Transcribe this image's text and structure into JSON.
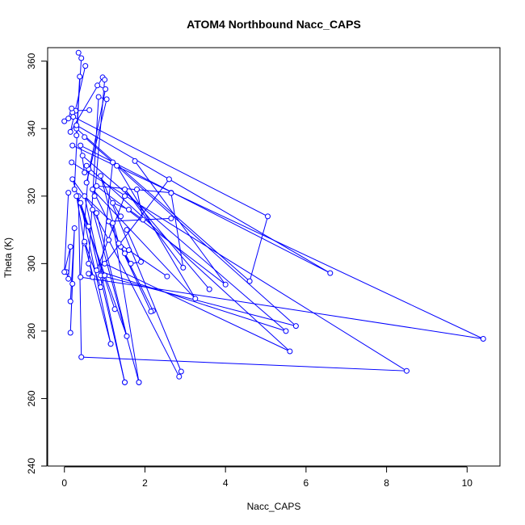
{
  "chart_data": {
    "type": "line",
    "title": "ATOM4 Northbound Nacc_CAPS",
    "xlabel": "Nacc_CAPS",
    "ylabel": "Theta (K)",
    "xlim": [
      0,
      10.4
    ],
    "ylim": [
      240,
      364
    ],
    "xticks": [
      0,
      2,
      4,
      6,
      8,
      10
    ],
    "yticks": [
      240,
      260,
      280,
      300,
      320,
      340,
      360
    ],
    "grid": false,
    "color": "#0000ff",
    "marker": "open-circle",
    "segments": [
      {
        "points": [
          [
            0.35,
            362.5
          ],
          [
            0.42,
            360.9
          ],
          [
            0.3,
            338.0
          ],
          [
            0.38,
            355.4
          ],
          [
            0.25,
            322.0
          ]
        ]
      },
      {
        "points": [
          [
            0.52,
            358.6
          ],
          [
            0.15,
            339.0
          ],
          [
            0.95,
            355.2
          ],
          [
            1.0,
            354.5
          ],
          [
            0.75,
            320.0
          ]
        ]
      },
      {
        "points": [
          [
            0.82,
            352.8
          ],
          [
            1.02,
            351.7
          ],
          [
            0.55,
            324.0
          ],
          [
            1.05,
            348.7
          ],
          [
            0.85,
            349.4
          ],
          [
            0.6,
            300.0
          ]
        ]
      },
      {
        "points": [
          [
            0.62,
            345.5
          ],
          [
            0.28,
            345.3
          ],
          [
            0.2,
            344.8
          ],
          [
            0.18,
            346.0
          ],
          [
            0.1,
            343.0
          ],
          [
            0.0,
            342.2
          ]
        ]
      },
      {
        "points": [
          [
            0.22,
            343.5
          ],
          [
            5.05,
            314.0
          ],
          [
            4.6,
            294.8
          ],
          [
            0.3,
            340.0
          ]
        ]
      },
      {
        "points": [
          [
            0.3,
            341.0
          ],
          [
            6.6,
            297.2
          ],
          [
            0.4,
            335.0
          ],
          [
            0.5,
            327.0
          ]
        ]
      },
      {
        "points": [
          [
            0.2,
            335.0
          ],
          [
            10.4,
            277.7
          ],
          [
            0.4,
            296.0
          ],
          [
            0.6,
            328.0
          ]
        ]
      },
      {
        "points": [
          [
            0.18,
            330.0
          ],
          [
            8.5,
            268.2
          ],
          [
            0.42,
            272.3
          ],
          [
            0.35,
            320.0
          ]
        ]
      },
      {
        "points": [
          [
            0.5,
            337.5
          ],
          [
            5.75,
            281.5
          ],
          [
            0.9,
            296.5
          ],
          [
            1.2,
            330.0
          ]
        ]
      },
      {
        "points": [
          [
            0.45,
            332.0
          ],
          [
            5.5,
            280.0
          ],
          [
            0.8,
            298.0
          ],
          [
            1.5,
            320.0
          ]
        ]
      },
      {
        "points": [
          [
            0.55,
            329.0
          ],
          [
            5.6,
            274.0
          ],
          [
            1.0,
            300.0
          ],
          [
            2.6,
            325.0
          ]
        ]
      },
      {
        "points": [
          [
            1.75,
            330.4
          ],
          [
            4.0,
            293.8
          ],
          [
            0.8,
            323.0
          ],
          [
            2.65,
            321.0
          ]
        ]
      },
      {
        "points": [
          [
            2.65,
            320.9
          ],
          [
            2.95,
            298.8
          ],
          [
            1.5,
            322.0
          ],
          [
            3.6,
            292.4
          ]
        ]
      },
      {
        "points": [
          [
            1.3,
            329.0
          ],
          [
            3.25,
            289.6
          ],
          [
            0.7,
            322.0
          ],
          [
            2.2,
            286.0
          ]
        ]
      },
      {
        "points": [
          [
            2.65,
            313.4
          ],
          [
            1.1,
            312.5
          ],
          [
            2.15,
            285.8
          ],
          [
            1.4,
            305.0
          ]
        ]
      },
      {
        "points": [
          [
            2.55,
            296.2
          ],
          [
            1.35,
            306.0
          ],
          [
            0.9,
            326.0
          ],
          [
            2.9,
            268.0
          ]
        ]
      },
      {
        "points": [
          [
            2.85,
            266.5
          ],
          [
            1.1,
            307.0
          ],
          [
            0.7,
            316.0
          ],
          [
            1.85,
            264.8
          ]
        ]
      },
      {
        "points": [
          [
            1.85,
            264.8
          ],
          [
            1.2,
            312.0
          ],
          [
            0.5,
            320.0
          ],
          [
            1.5,
            264.8
          ]
        ]
      },
      {
        "points": [
          [
            1.5,
            264.8
          ],
          [
            0.6,
            311.0
          ],
          [
            0.4,
            318.0
          ],
          [
            1.15,
            276.2
          ]
        ]
      },
      {
        "points": [
          [
            1.15,
            276.2
          ],
          [
            0.5,
            306.0
          ],
          [
            0.3,
            320.0
          ],
          [
            1.55,
            278.5
          ]
        ]
      },
      {
        "points": [
          [
            1.55,
            278.5
          ],
          [
            0.8,
            315.0
          ],
          [
            0.2,
            325.0
          ],
          [
            1.25,
            286.5
          ]
        ]
      },
      {
        "points": [
          [
            0.15,
            288.8
          ],
          [
            0.25,
            310.5
          ],
          [
            0.15,
            279.5
          ],
          [
            0.2,
            294.0
          ]
        ]
      },
      {
        "points": [
          [
            0.05,
            297.5
          ],
          [
            0.1,
            295.5
          ],
          [
            0.15,
            305.0
          ],
          [
            0.0,
            297.5
          ],
          [
            0.1,
            321.0
          ]
        ]
      },
      {
        "points": [
          [
            0.6,
            297.0
          ],
          [
            0.7,
            296.0
          ],
          [
            0.5,
            306.5
          ],
          [
            0.9,
            293.0
          ],
          [
            1.0,
            296.5
          ]
        ]
      },
      {
        "points": [
          [
            1.6,
            304.0
          ],
          [
            1.5,
            303.0
          ],
          [
            1.65,
            300.0
          ],
          [
            1.9,
            300.5
          ],
          [
            1.55,
            310.0
          ]
        ]
      },
      {
        "points": [
          [
            1.8,
            322.0
          ],
          [
            1.95,
            313.0
          ],
          [
            1.6,
            316.0
          ],
          [
            1.2,
            318.0
          ],
          [
            1.4,
            314.0
          ]
        ]
      }
    ]
  }
}
